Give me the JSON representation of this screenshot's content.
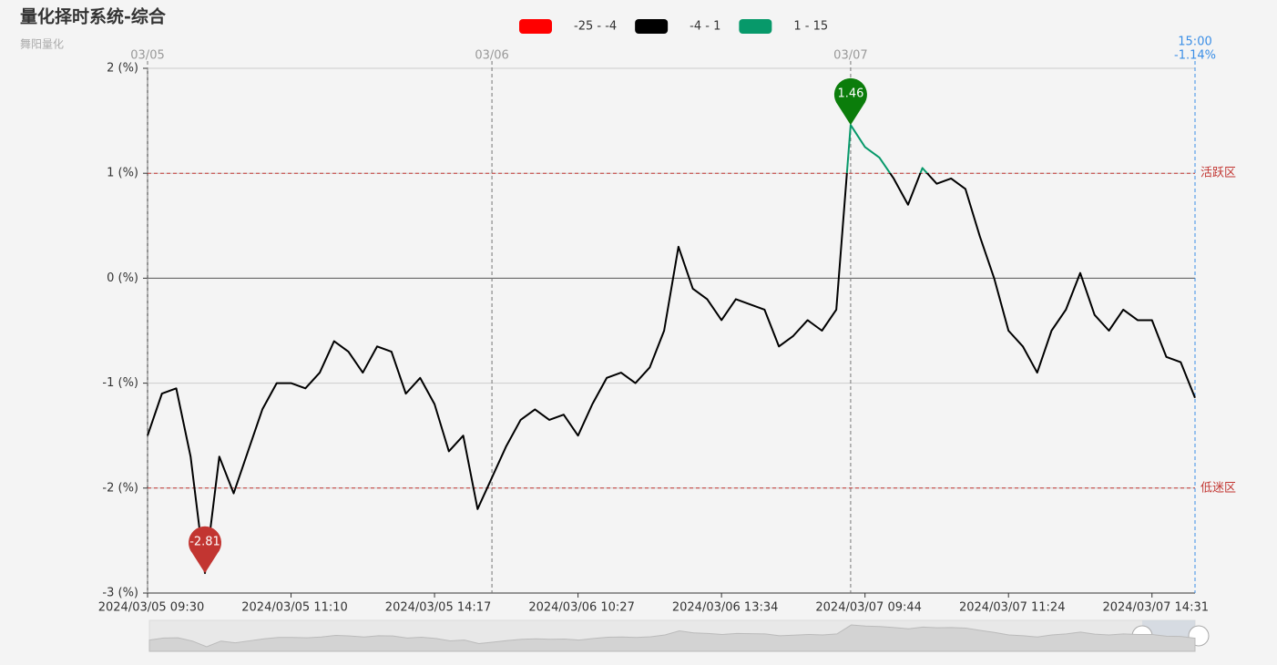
{
  "chart_data": {
    "type": "line",
    "title": "量化择时系统-综合",
    "subtitle": "舞阳量化",
    "categories": [
      "2024/03/05 09:30",
      null,
      null,
      null,
      null,
      null,
      null,
      null,
      null,
      null,
      "2024/03/05 11:10",
      null,
      null,
      null,
      null,
      null,
      null,
      null,
      null,
      null,
      "2024/03/05 14:17",
      null,
      null,
      null,
      null,
      null,
      null,
      null,
      null,
      null,
      "2024/03/06 10:27",
      null,
      null,
      null,
      null,
      null,
      null,
      null,
      null,
      null,
      "2024/03/06 13:34",
      null,
      null,
      null,
      null,
      null,
      null,
      null,
      null,
      null,
      "2024/03/07 09:44",
      null,
      null,
      null,
      null,
      null,
      null,
      null,
      null,
      null,
      "2024/03/07 11:24",
      null,
      null,
      null,
      null,
      null,
      null,
      null,
      null,
      null,
      "2024/03/07 14:31",
      null,
      null,
      null
    ],
    "series": [
      {
        "name": "综合",
        "values": [
          -1.5,
          -1.1,
          -1.05,
          -1.7,
          -2.81,
          -1.7,
          -2.05,
          -1.65,
          -1.25,
          -1.0,
          -1.0,
          -1.05,
          -0.9,
          -0.6,
          -0.7,
          -0.9,
          -0.65,
          -0.7,
          -1.1,
          -0.95,
          -1.2,
          -1.65,
          -1.5,
          -2.2,
          -1.9,
          -1.6,
          -1.35,
          -1.25,
          -1.35,
          -1.3,
          -1.5,
          -1.2,
          -0.95,
          -0.9,
          -1.0,
          -0.85,
          -0.5,
          0.3,
          -0.1,
          -0.2,
          -0.4,
          -0.2,
          -0.25,
          -0.3,
          -0.65,
          -0.55,
          -0.4,
          -0.5,
          -0.3,
          1.46,
          1.25,
          1.15,
          0.95,
          0.7,
          1.05,
          0.9,
          0.95,
          0.85,
          0.4,
          0.0,
          -0.5,
          -0.65,
          -0.9,
          -0.5,
          -0.3,
          0.05,
          -0.35,
          -0.5,
          -0.3,
          -0.4,
          -0.4,
          -0.75,
          -0.8,
          -1.14
        ]
      }
    ],
    "pieces": [
      {
        "min": -25,
        "max": -4,
        "label": "-25 - -4",
        "color": "#ff0000"
      },
      {
        "min": -4,
        "max": 1,
        "label": "-4 - 1",
        "color": "#000000"
      },
      {
        "min": 1,
        "max": 15,
        "label": "1 - 15",
        "color": "#07996a"
      }
    ],
    "markpoint_colors": {
      "max": "#0b7d0b",
      "min": "#c23531"
    },
    "mark_lines": [
      {
        "value": 1,
        "label": "活跃区"
      },
      {
        "value": -2,
        "label": "低迷区"
      }
    ],
    "day_markers": [
      {
        "label": "03/05",
        "category_index": 0
      },
      {
        "label": "03/06",
        "category_index": 24
      },
      {
        "label": "03/07",
        "category_index": 49
      }
    ],
    "end_label": {
      "time": "15:00",
      "text": "-1.14%"
    },
    "ylim": [
      -3,
      2
    ],
    "yticks": [
      {
        "value": -3,
        "label": "-3 (%)"
      },
      {
        "value": -2,
        "label": "-2 (%)"
      },
      {
        "value": -1,
        "label": "-1 (%)"
      },
      {
        "value": 0,
        "label": "0 (%)"
      },
      {
        "value": 1,
        "label": "1 (%)"
      },
      {
        "value": 2,
        "label": "2 (%)"
      }
    ],
    "grid": true
  }
}
